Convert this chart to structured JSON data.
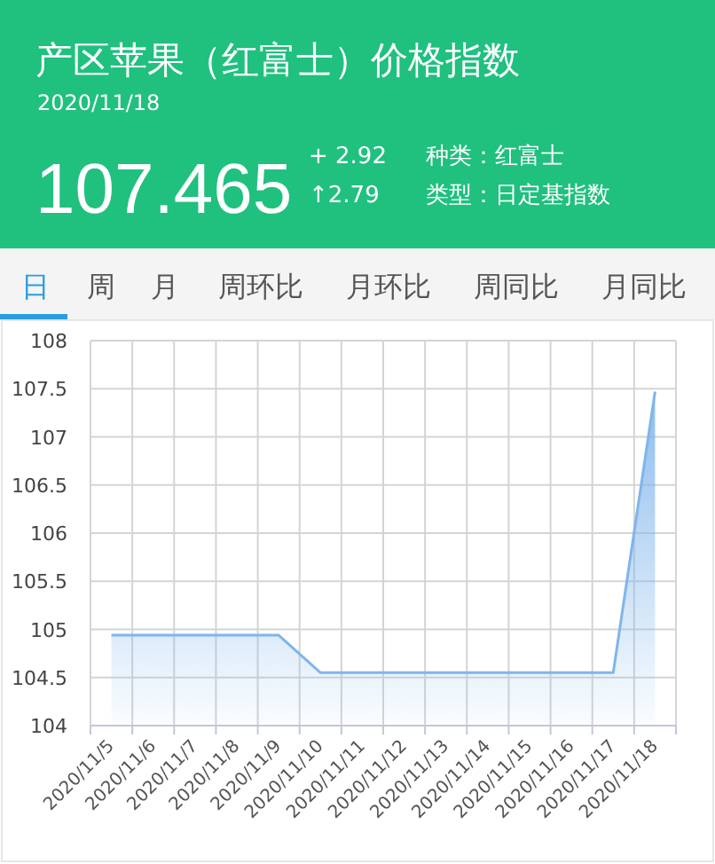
{
  "chart_data": {
    "type": "area",
    "title": "产区苹果（红富士）价格指数",
    "subtitle": "2020/11/18",
    "annotations": [
      "107.465",
      "+ 2.92",
      "↑2.79",
      "种类：红富士",
      "类型：日定基指数",
      "日",
      "周",
      "月",
      "周环比",
      "月环比",
      "周同比",
      "月同比"
    ],
    "categories": [
      "2020/11/5",
      "2020/11/6",
      "2020/11/7",
      "2020/11/8",
      "2020/11/9",
      "2020/11/10",
      "2020/11/11",
      "2020/11/12",
      "2020/11/13",
      "2020/11/14",
      "2020/11/15",
      "2020/11/16",
      "2020/11/17",
      "2020/11/18"
    ],
    "values": [
      104.94,
      104.94,
      104.94,
      104.94,
      104.94,
      104.55,
      104.55,
      104.55,
      104.55,
      104.55,
      104.55,
      104.55,
      104.55,
      107.47
    ],
    "color": "#7fb5ec",
    "ylim": [
      104,
      108
    ],
    "yticks": [
      104,
      104.5,
      105,
      105.5,
      106,
      106.5,
      107,
      107.5,
      108
    ],
    "grid": true
  }
}
